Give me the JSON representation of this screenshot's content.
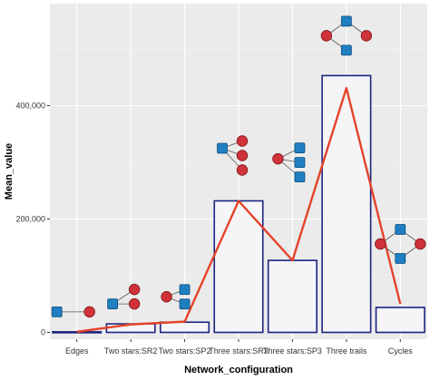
{
  "chart_data": {
    "type": "bar",
    "xlabel": "Network_configuration",
    "ylabel": "Mean_value",
    "categories": [
      "Edges",
      "Two stars:SR2",
      "Two stars:SP2",
      "Three stars:SR3",
      "Three stars:SP3",
      "Three trails",
      "Cycles"
    ],
    "values": [
      1000,
      15000,
      18000,
      232000,
      127000,
      453000,
      44000
    ],
    "line_values": [
      1000,
      14000,
      19000,
      232000,
      127000,
      431000,
      50000
    ],
    "yticks": [
      0,
      200000,
      400000
    ],
    "ytick_labels": [
      "0",
      "200,000",
      "400,000"
    ],
    "ylim": [
      -12000,
      580000
    ],
    "grid": true,
    "colors": {
      "panel_bg": "#ebebeb",
      "grid_major": "#ffffff",
      "grid_minor": "#f5f5f5",
      "bar_fill": "#f5f5f7",
      "bar_stroke": "#1a237e",
      "line": "#e5432a",
      "square_node": "#1f7fc1",
      "circle_node": "#cf3238",
      "node_edge": "#555555"
    },
    "icons": [
      "edge-motif-icon",
      "two-stars-sr2-icon",
      "two-stars-sp2-icon",
      "three-stars-sr3-icon",
      "three-stars-sp3-icon",
      "three-trails-icon",
      "cycles-icon"
    ]
  }
}
